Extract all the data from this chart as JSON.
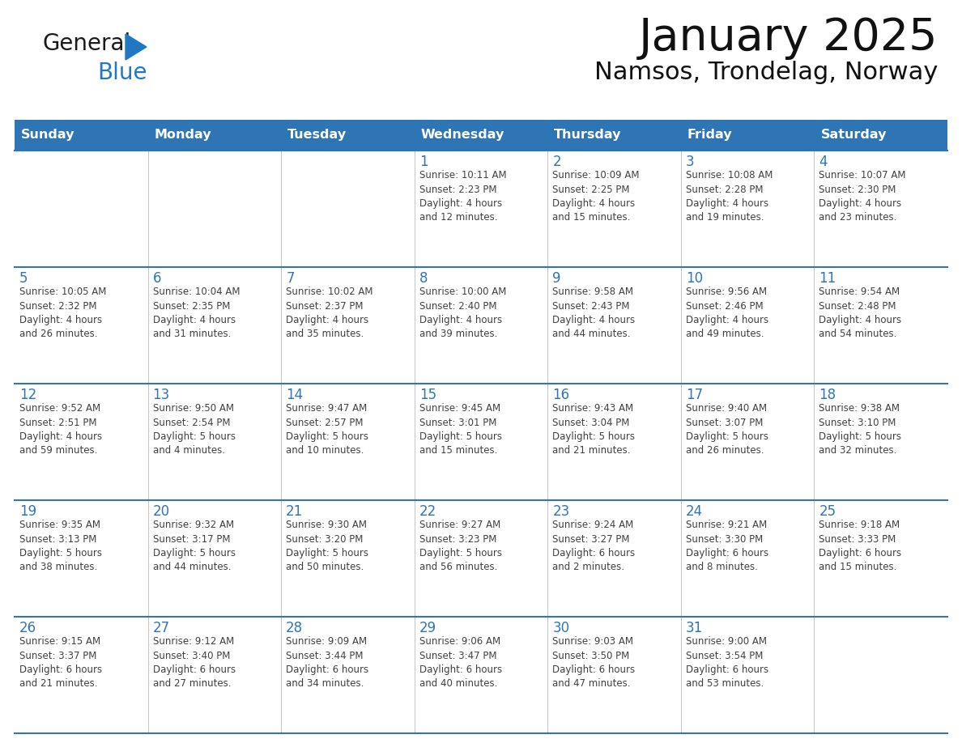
{
  "title": "January 2025",
  "subtitle": "Namsos, Trondelag, Norway",
  "days_of_week": [
    "Sunday",
    "Monday",
    "Tuesday",
    "Wednesday",
    "Thursday",
    "Friday",
    "Saturday"
  ],
  "header_bg": "#2E75B6",
  "header_text": "#FFFFFF",
  "cell_bg": "#FFFFFF",
  "day_num_color": "#2E75B6",
  "text_color": "#404040",
  "line_color": "#2E75B6",
  "logo_general_color": "#1a1a1a",
  "logo_blue_color": "#2079C0",
  "calendar_data": [
    [
      {
        "day": null,
        "text": ""
      },
      {
        "day": null,
        "text": ""
      },
      {
        "day": null,
        "text": ""
      },
      {
        "day": 1,
        "text": "Sunrise: 10:11 AM\nSunset: 2:23 PM\nDaylight: 4 hours\nand 12 minutes."
      },
      {
        "day": 2,
        "text": "Sunrise: 10:09 AM\nSunset: 2:25 PM\nDaylight: 4 hours\nand 15 minutes."
      },
      {
        "day": 3,
        "text": "Sunrise: 10:08 AM\nSunset: 2:28 PM\nDaylight: 4 hours\nand 19 minutes."
      },
      {
        "day": 4,
        "text": "Sunrise: 10:07 AM\nSunset: 2:30 PM\nDaylight: 4 hours\nand 23 minutes."
      }
    ],
    [
      {
        "day": 5,
        "text": "Sunrise: 10:05 AM\nSunset: 2:32 PM\nDaylight: 4 hours\nand 26 minutes."
      },
      {
        "day": 6,
        "text": "Sunrise: 10:04 AM\nSunset: 2:35 PM\nDaylight: 4 hours\nand 31 minutes."
      },
      {
        "day": 7,
        "text": "Sunrise: 10:02 AM\nSunset: 2:37 PM\nDaylight: 4 hours\nand 35 minutes."
      },
      {
        "day": 8,
        "text": "Sunrise: 10:00 AM\nSunset: 2:40 PM\nDaylight: 4 hours\nand 39 minutes."
      },
      {
        "day": 9,
        "text": "Sunrise: 9:58 AM\nSunset: 2:43 PM\nDaylight: 4 hours\nand 44 minutes."
      },
      {
        "day": 10,
        "text": "Sunrise: 9:56 AM\nSunset: 2:46 PM\nDaylight: 4 hours\nand 49 minutes."
      },
      {
        "day": 11,
        "text": "Sunrise: 9:54 AM\nSunset: 2:48 PM\nDaylight: 4 hours\nand 54 minutes."
      }
    ],
    [
      {
        "day": 12,
        "text": "Sunrise: 9:52 AM\nSunset: 2:51 PM\nDaylight: 4 hours\nand 59 minutes."
      },
      {
        "day": 13,
        "text": "Sunrise: 9:50 AM\nSunset: 2:54 PM\nDaylight: 5 hours\nand 4 minutes."
      },
      {
        "day": 14,
        "text": "Sunrise: 9:47 AM\nSunset: 2:57 PM\nDaylight: 5 hours\nand 10 minutes."
      },
      {
        "day": 15,
        "text": "Sunrise: 9:45 AM\nSunset: 3:01 PM\nDaylight: 5 hours\nand 15 minutes."
      },
      {
        "day": 16,
        "text": "Sunrise: 9:43 AM\nSunset: 3:04 PM\nDaylight: 5 hours\nand 21 minutes."
      },
      {
        "day": 17,
        "text": "Sunrise: 9:40 AM\nSunset: 3:07 PM\nDaylight: 5 hours\nand 26 minutes."
      },
      {
        "day": 18,
        "text": "Sunrise: 9:38 AM\nSunset: 3:10 PM\nDaylight: 5 hours\nand 32 minutes."
      }
    ],
    [
      {
        "day": 19,
        "text": "Sunrise: 9:35 AM\nSunset: 3:13 PM\nDaylight: 5 hours\nand 38 minutes."
      },
      {
        "day": 20,
        "text": "Sunrise: 9:32 AM\nSunset: 3:17 PM\nDaylight: 5 hours\nand 44 minutes."
      },
      {
        "day": 21,
        "text": "Sunrise: 9:30 AM\nSunset: 3:20 PM\nDaylight: 5 hours\nand 50 minutes."
      },
      {
        "day": 22,
        "text": "Sunrise: 9:27 AM\nSunset: 3:23 PM\nDaylight: 5 hours\nand 56 minutes."
      },
      {
        "day": 23,
        "text": "Sunrise: 9:24 AM\nSunset: 3:27 PM\nDaylight: 6 hours\nand 2 minutes."
      },
      {
        "day": 24,
        "text": "Sunrise: 9:21 AM\nSunset: 3:30 PM\nDaylight: 6 hours\nand 8 minutes."
      },
      {
        "day": 25,
        "text": "Sunrise: 9:18 AM\nSunset: 3:33 PM\nDaylight: 6 hours\nand 15 minutes."
      }
    ],
    [
      {
        "day": 26,
        "text": "Sunrise: 9:15 AM\nSunset: 3:37 PM\nDaylight: 6 hours\nand 21 minutes."
      },
      {
        "day": 27,
        "text": "Sunrise: 9:12 AM\nSunset: 3:40 PM\nDaylight: 6 hours\nand 27 minutes."
      },
      {
        "day": 28,
        "text": "Sunrise: 9:09 AM\nSunset: 3:44 PM\nDaylight: 6 hours\nand 34 minutes."
      },
      {
        "day": 29,
        "text": "Sunrise: 9:06 AM\nSunset: 3:47 PM\nDaylight: 6 hours\nand 40 minutes."
      },
      {
        "day": 30,
        "text": "Sunrise: 9:03 AM\nSunset: 3:50 PM\nDaylight: 6 hours\nand 47 minutes."
      },
      {
        "day": 31,
        "text": "Sunrise: 9:00 AM\nSunset: 3:54 PM\nDaylight: 6 hours\nand 53 minutes."
      },
      {
        "day": null,
        "text": ""
      }
    ]
  ],
  "figsize": [
    11.88,
    9.18
  ],
  "dpi": 100
}
